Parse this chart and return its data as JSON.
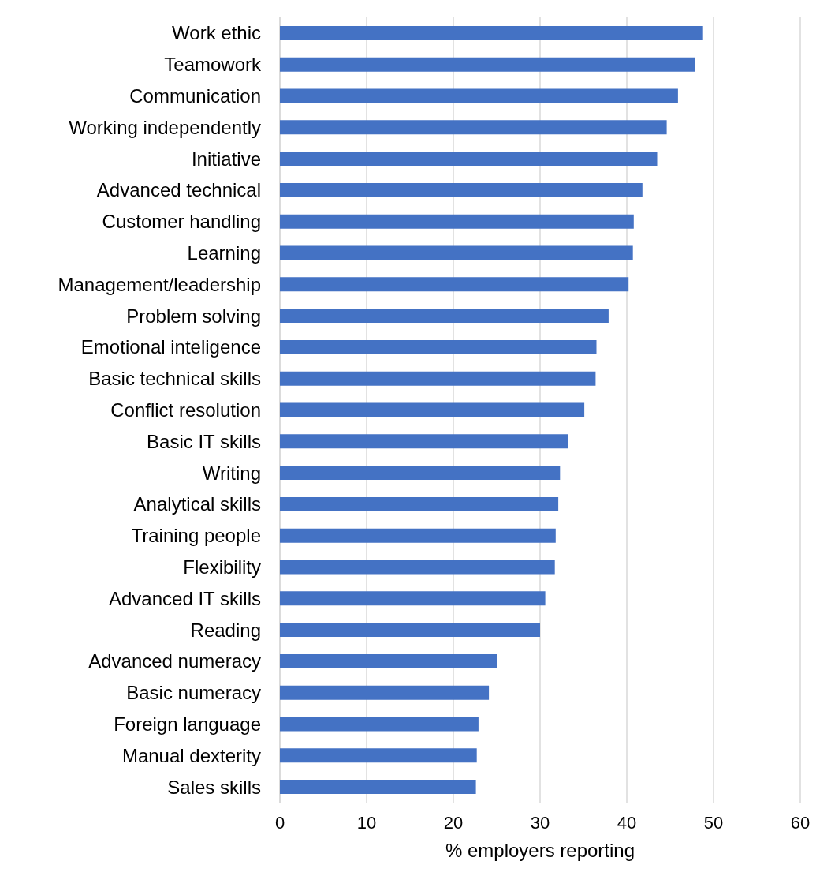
{
  "chart_data": {
    "type": "bar",
    "orientation": "horizontal",
    "xlabel": "% employers reporting",
    "categories": [
      "Work ethic",
      "Teamowork",
      "Communication",
      "Working independently",
      "Initiative",
      "Advanced technical",
      "Customer handling",
      "Learning",
      "Management/leadership",
      "Problem solving",
      "Emotional inteligence",
      "Basic technical skills",
      "Conflict resolution",
      "Basic IT skills",
      "Writing",
      "Analytical skills",
      "Training people",
      "Flexibility",
      "Advanced IT skills",
      "Reading",
      "Advanced numeracy",
      "Basic numeracy",
      "Foreign language",
      "Manual dexterity",
      "Sales skills"
    ],
    "values": [
      48.7,
      47.9,
      45.9,
      44.6,
      43.5,
      41.8,
      40.8,
      40.7,
      40.2,
      37.9,
      36.5,
      36.4,
      35.1,
      33.2,
      32.3,
      32.1,
      31.8,
      31.7,
      30.6,
      30.0,
      25.0,
      24.1,
      22.9,
      22.7,
      22.6
    ],
    "color": "#4472c4",
    "xlim": [
      0,
      60
    ],
    "xticks": [
      0,
      10,
      20,
      30,
      40,
      50,
      60
    ],
    "grid": "x"
  }
}
